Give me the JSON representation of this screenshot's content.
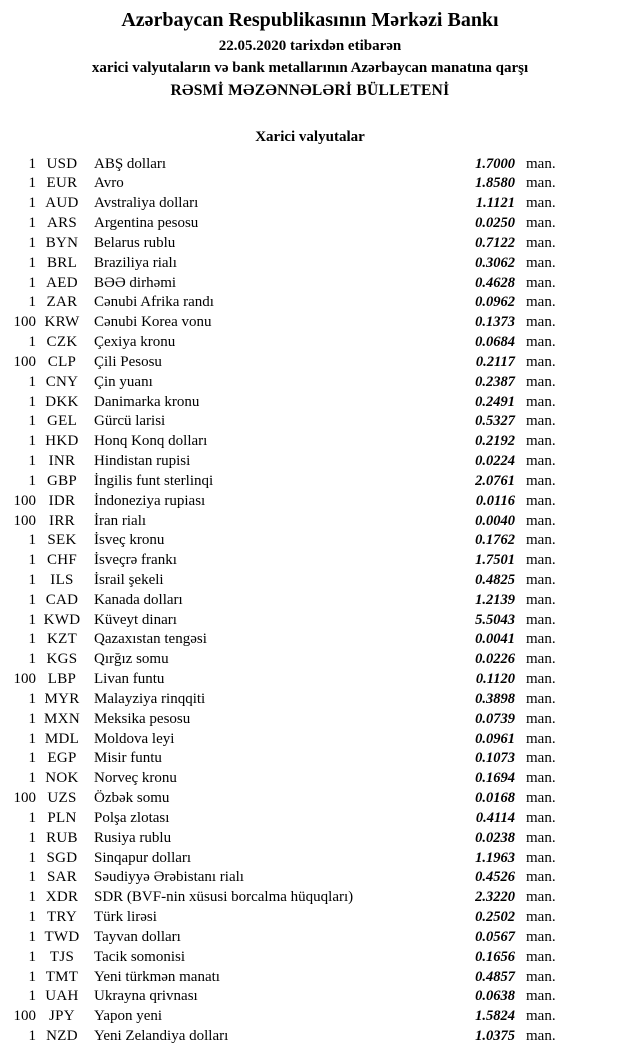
{
  "header": {
    "title": "Azərbaycan Respublikasının Mərkəzi Bankı",
    "date_line": "22.05.2020 tarixdən etibarən",
    "subtitle": "xarici valyutaların və bank metallarının Azərbaycan manatına qarşı",
    "bulletin_title": "RƏSMİ MƏZƏNNƏLƏRİ BÜLLETENİ"
  },
  "section": {
    "title": "Xarici valyutalar"
  },
  "unit_label": "man.",
  "rates": [
    {
      "qty": "1",
      "code": "USD",
      "name": "ABŞ dolları",
      "rate": "1.7000"
    },
    {
      "qty": "1",
      "code": "EUR",
      "name": "Avro",
      "rate": "1.8580"
    },
    {
      "qty": "1",
      "code": "AUD",
      "name": "Avstraliya dolları",
      "rate": "1.1121"
    },
    {
      "qty": "1",
      "code": "ARS",
      "name": "Argentina pesosu",
      "rate": "0.0250"
    },
    {
      "qty": "1",
      "code": "BYN",
      "name": "Belarus rublu",
      "rate": "0.7122"
    },
    {
      "qty": "1",
      "code": "BRL",
      "name": "Braziliya rialı",
      "rate": "0.3062"
    },
    {
      "qty": "1",
      "code": "AED",
      "name": "BƏƏ dirhəmi",
      "rate": "0.4628"
    },
    {
      "qty": "1",
      "code": "ZAR",
      "name": "Cənubi Afrika randı",
      "rate": "0.0962"
    },
    {
      "qty": "100",
      "code": "KRW",
      "name": "Cənubi Korea vonu",
      "rate": "0.1373"
    },
    {
      "qty": "1",
      "code": "CZK",
      "name": "Çexiya kronu",
      "rate": "0.0684"
    },
    {
      "qty": "100",
      "code": "CLP",
      "name": "Çili Pesosu",
      "rate": "0.2117"
    },
    {
      "qty": "1",
      "code": "CNY",
      "name": "Çin yuanı",
      "rate": "0.2387"
    },
    {
      "qty": "1",
      "code": "DKK",
      "name": "Danimarka kronu",
      "rate": "0.2491"
    },
    {
      "qty": "1",
      "code": "GEL",
      "name": "Gürcü larisi",
      "rate": "0.5327"
    },
    {
      "qty": "1",
      "code": "HKD",
      "name": "Honq Konq dolları",
      "rate": "0.2192"
    },
    {
      "qty": "1",
      "code": "INR",
      "name": "Hindistan rupisi",
      "rate": "0.0224"
    },
    {
      "qty": "1",
      "code": "GBP",
      "name": "İngilis funt sterlinqi",
      "rate": "2.0761"
    },
    {
      "qty": "100",
      "code": "IDR",
      "name": "İndoneziya rupiası",
      "rate": "0.0116"
    },
    {
      "qty": "100",
      "code": "IRR",
      "name": "İran rialı",
      "rate": "0.0040"
    },
    {
      "qty": "1",
      "code": "SEK",
      "name": "İsveç kronu",
      "rate": "0.1762"
    },
    {
      "qty": "1",
      "code": "CHF",
      "name": "İsveçrə frankı",
      "rate": "1.7501"
    },
    {
      "qty": "1",
      "code": "ILS",
      "name": "İsrail şekeli",
      "rate": "0.4825"
    },
    {
      "qty": "1",
      "code": "CAD",
      "name": "Kanada dolları",
      "rate": "1.2139"
    },
    {
      "qty": "1",
      "code": "KWD",
      "name": "Küveyt dinarı",
      "rate": "5.5043"
    },
    {
      "qty": "1",
      "code": "KZT",
      "name": "Qazaxıstan tengəsi",
      "rate": "0.0041"
    },
    {
      "qty": "1",
      "code": "KGS",
      "name": "Qırğız somu",
      "rate": "0.0226"
    },
    {
      "qty": "100",
      "code": "LBP",
      "name": "Livan funtu",
      "rate": "0.1120"
    },
    {
      "qty": "1",
      "code": "MYR",
      "name": "Malayziya rinqqiti",
      "rate": "0.3898"
    },
    {
      "qty": "1",
      "code": "MXN",
      "name": "Meksika pesosu",
      "rate": "0.0739"
    },
    {
      "qty": "1",
      "code": "MDL",
      "name": "Moldova leyi",
      "rate": "0.0961"
    },
    {
      "qty": "1",
      "code": "EGP",
      "name": "Misir funtu",
      "rate": "0.1073"
    },
    {
      "qty": "1",
      "code": "NOK",
      "name": "Norveç kronu",
      "rate": "0.1694"
    },
    {
      "qty": "100",
      "code": "UZS",
      "name": "Özbək somu",
      "rate": "0.0168"
    },
    {
      "qty": "1",
      "code": "PLN",
      "name": "Polşa zlotası",
      "rate": "0.4114"
    },
    {
      "qty": "1",
      "code": "RUB",
      "name": "Rusiya rublu",
      "rate": "0.0238"
    },
    {
      "qty": "1",
      "code": "SGD",
      "name": "Sinqapur dolları",
      "rate": "1.1963"
    },
    {
      "qty": "1",
      "code": "SAR",
      "name": "Səudiyyə Ərəbistanı rialı",
      "rate": "0.4526"
    },
    {
      "qty": "1",
      "code": "XDR",
      "name": "SDR (BVF-nin xüsusi borcalma hüquqları)",
      "rate": "2.3220"
    },
    {
      "qty": "1",
      "code": "TRY",
      "name": "Türk lirəsi",
      "rate": "0.2502"
    },
    {
      "qty": "1",
      "code": "TWD",
      "name": "Tayvan dolları",
      "rate": "0.0567"
    },
    {
      "qty": "1",
      "code": "TJS",
      "name": "Tacik somonisi",
      "rate": "0.1656"
    },
    {
      "qty": "1",
      "code": "TMT",
      "name": "Yeni türkmən manatı",
      "rate": "0.4857"
    },
    {
      "qty": "1",
      "code": "UAH",
      "name": "Ukrayna qrivnası",
      "rate": "0.0638"
    },
    {
      "qty": "100",
      "code": "JPY",
      "name": "Yapon yeni",
      "rate": "1.5824"
    },
    {
      "qty": "1",
      "code": "NZD",
      "name": "Yeni Zelandiya dolları",
      "rate": "1.0375"
    }
  ]
}
